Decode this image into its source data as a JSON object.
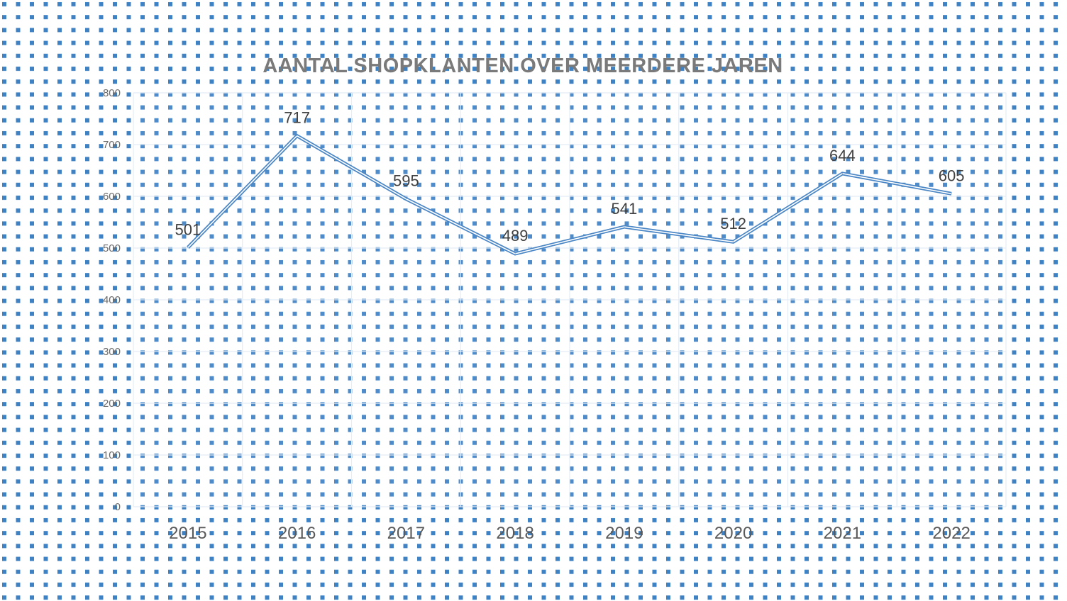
{
  "chart_data": {
    "type": "line",
    "title": "AANTAL SHOPKLANTEN OVER MEERDERE JAREN",
    "xlabel": "",
    "ylabel": "",
    "categories": [
      "2015",
      "2016",
      "2017",
      "2018",
      "2019",
      "2020",
      "2021",
      "2022"
    ],
    "series": [
      {
        "values": [
          501,
          717,
          595,
          489,
          541,
          512,
          644,
          605
        ]
      }
    ],
    "ylim": [
      0,
      800
    ],
    "yticks": [
      0,
      100,
      200,
      300,
      400,
      500,
      600,
      700,
      800
    ],
    "ytick_labels": [
      "0",
      "100",
      "200",
      "300",
      "400",
      "500",
      "600",
      "700",
      "800"
    ],
    "data_labels": [
      "501",
      "717",
      "595",
      "489",
      "541",
      "512",
      "644",
      "605"
    ],
    "grid": true,
    "legend": "none",
    "colors": {
      "line": "#4a86c5",
      "dots": "#3f82c4",
      "grid": "#e4ecf5",
      "title": "#7a7a7a"
    }
  }
}
